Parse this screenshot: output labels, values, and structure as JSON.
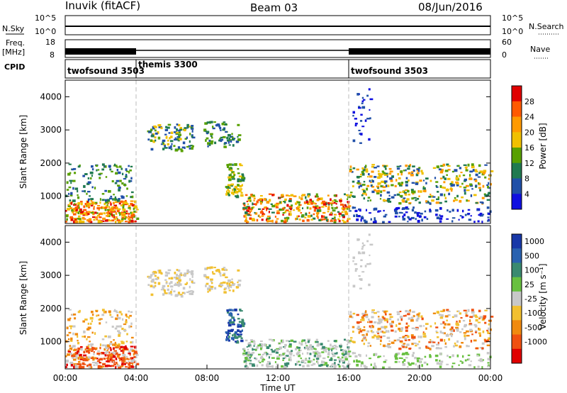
{
  "header": {
    "station": "Inuvik (fitACF)",
    "beam": "Beam 03",
    "date": "08/Jun/2016"
  },
  "strips": {
    "nsky": {
      "label": "N.Sky",
      "left_ticks": [
        "10^5",
        "10^0"
      ],
      "right_ticks": [
        "10^5",
        "10^0"
      ],
      "right_label": "N.Search"
    },
    "freq": {
      "label_top": "Freq.",
      "label_bottom": "[MHz]",
      "left_ticks": [
        "18",
        "8"
      ],
      "right_ticks": [
        "60",
        "0"
      ],
      "right_label": "Nave"
    },
    "cpid": {
      "label": "CPID",
      "segments": [
        {
          "name": "twofsound 3503",
          "start": 0,
          "end": 4
        },
        {
          "name": "themis 3300",
          "start": 4,
          "end": 16
        },
        {
          "name": "twofsound 3503",
          "start": 16,
          "end": 24
        }
      ]
    }
  },
  "chart_data": [
    {
      "type": "heatmap",
      "quantity": "power",
      "xlabel": "",
      "ylabel": "Slant Range [km]",
      "ylim": [
        180,
        4500
      ],
      "yticks": [
        "1000",
        "2000",
        "3000",
        "4000"
      ],
      "colorbar": {
        "label": "Power [dB]",
        "ticks": [
          "28",
          "24",
          "20",
          "16",
          "12",
          "8",
          "4"
        ],
        "colors": [
          "#e00000",
          "#ff5a00",
          "#ff9a00",
          "#f0c000",
          "#58a000",
          "#207a50",
          "#2050a8",
          "#1010e0"
        ]
      }
    },
    {
      "type": "heatmap",
      "quantity": "velocity",
      "xlabel": "Time UT",
      "ylabel": "Slant Range [km]",
      "ylim": [
        180,
        4500
      ],
      "yticks": [
        "1000",
        "2000",
        "3000",
        "4000"
      ],
      "xticks": [
        "00:00",
        "04:00",
        "08:00",
        "12:00",
        "16:00",
        "20:00",
        "00:00"
      ],
      "xlim": [
        0,
        24
      ],
      "colorbar": {
        "label": "Velocity [m s⁻¹]",
        "ticks": [
          "1000",
          "500",
          "100",
          "25",
          "-25",
          "-100",
          "-500",
          "-1000"
        ],
        "colors": [
          "#1838a8",
          "#2a62b0",
          "#3a8a70",
          "#68c040",
          "#c8c8c8",
          "#f2c030",
          "#f08a10",
          "#f05010",
          "#e00000"
        ]
      }
    }
  ]
}
